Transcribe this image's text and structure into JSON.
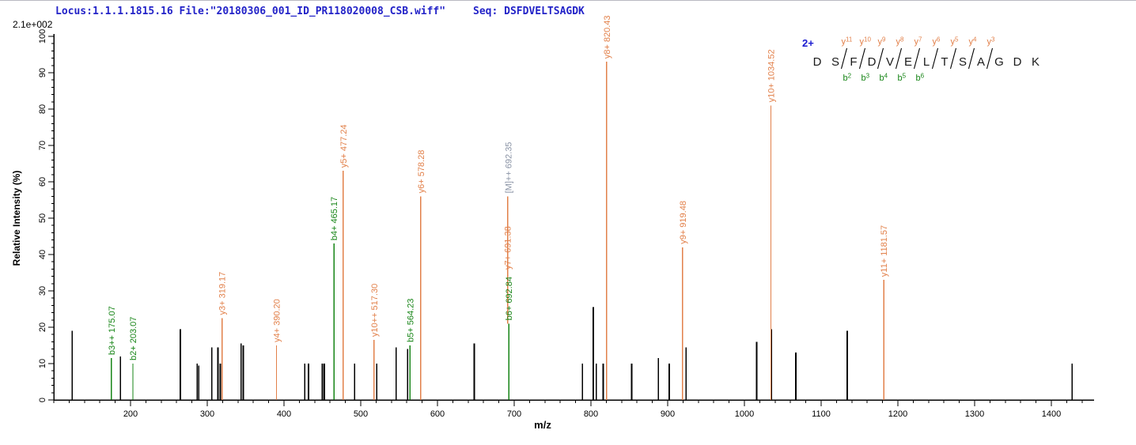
{
  "header": {
    "locus_file": "Locus:1.1.1.1815.16 File:\"20180306_001_ID_PR118020008_CSB.wiff\"",
    "seq": "Seq: DSFDVELTSAGDK",
    "max_intensity": "2.1e+002"
  },
  "axes": {
    "x_label": "m/z",
    "y_label": "Relative Intensity (%)",
    "x_major_ticks": [
      200,
      300,
      400,
      500,
      600,
      700,
      800,
      900,
      1000,
      1100,
      1200,
      1300,
      1400
    ],
    "y_major_ticks": [
      0,
      10,
      20,
      30,
      40,
      50,
      60,
      70,
      80,
      90,
      100
    ],
    "x_min": 100,
    "x_max": 1455,
    "y_min": 0,
    "y_max": 100
  },
  "precursor": {
    "charge": "2+",
    "residues": [
      "D",
      "S",
      "F",
      "D",
      "V",
      "E",
      "L",
      "T",
      "S",
      "A",
      "G",
      "D",
      "K"
    ],
    "cleavages": [
      {
        "after_residue_index": 1,
        "y_label": "y11",
        "b_label": "b2"
      },
      {
        "after_residue_index": 2,
        "y_label": "y10",
        "b_label": "b3"
      },
      {
        "after_residue_index": 3,
        "y_label": "y9",
        "b_label": "b4"
      },
      {
        "after_residue_index": 4,
        "y_label": "y8",
        "b_label": "b5"
      },
      {
        "after_residue_index": 5,
        "y_label": "y7",
        "b_label": "b6"
      },
      {
        "after_residue_index": 6,
        "y_label": "y6",
        "b_label": null
      },
      {
        "after_residue_index": 7,
        "y_label": "y5",
        "b_label": null
      },
      {
        "after_residue_index": 8,
        "y_label": "y4",
        "b_label": null
      },
      {
        "after_residue_index": 9,
        "y_label": "y3",
        "b_label": null
      }
    ]
  },
  "colors": {
    "y_ion": "#e2804a",
    "b_ion": "#178517",
    "precursor_ion": "#8a93a5",
    "unassigned": "#000000",
    "header_text": "#2323c8",
    "charge_label": "#1a1ad0"
  },
  "chart_data": {
    "type": "bar",
    "description": "MS/MS fragment ion spectrum, relative intensity (%) vs m/z",
    "annotated_peaks": [
      {
        "label": "b3++ 175.07",
        "mz": 175.07,
        "intensity": 11.5,
        "ion": "b"
      },
      {
        "label": "b2+ 203.07",
        "mz": 203.07,
        "intensity": 10,
        "ion": "b"
      },
      {
        "label": "y3+ 319.17",
        "mz": 319.17,
        "intensity": 22.5,
        "ion": "y"
      },
      {
        "label": "y4+ 390.20",
        "mz": 390.2,
        "intensity": 15,
        "ion": "y"
      },
      {
        "label": "b4+ 465.17",
        "mz": 465.17,
        "intensity": 43,
        "ion": "b"
      },
      {
        "label": "y5+ 477.24",
        "mz": 477.24,
        "intensity": 63,
        "ion": "y"
      },
      {
        "label": "y10++ 517.30",
        "mz": 517.3,
        "intensity": 16.5,
        "ion": "y"
      },
      {
        "label": "b5+ 564.23",
        "mz": 564.23,
        "intensity": 15,
        "ion": "b"
      },
      {
        "label": "y6+ 578.28",
        "mz": 578.28,
        "intensity": 56,
        "ion": "y"
      },
      {
        "label": "b6+ 692.84",
        "mz": 692.84,
        "intensity": 21,
        "ion": "b"
      },
      {
        "label": "y7+ 691.38",
        "mz": 691.38,
        "intensity": 56,
        "ion": "y",
        "draw_from": 21,
        "label_at": 35
      },
      {
        "label": "[M]++ 692.35",
        "mz": 692.35,
        "intensity": 56,
        "ion": "M",
        "draw_from": 56,
        "label_at": 56
      },
      {
        "label": "y8+ 820.43",
        "mz": 820.43,
        "intensity": 93,
        "ion": "y"
      },
      {
        "label": "y9+ 919.48",
        "mz": 919.48,
        "intensity": 42,
        "ion": "y"
      },
      {
        "label": "y10+ 1034.52",
        "mz": 1034.52,
        "intensity": 81,
        "ion": "y"
      },
      {
        "label": "y11+ 1181.57",
        "mz": 1181.57,
        "intensity": 33,
        "ion": "y"
      }
    ],
    "unassigned_peaks": [
      {
        "mz": 124,
        "intensity": 19
      },
      {
        "mz": 187,
        "intensity": 12
      },
      {
        "mz": 265,
        "intensity": 19.5
      },
      {
        "mz": 287,
        "intensity": 10
      },
      {
        "mz": 289,
        "intensity": 9.5
      },
      {
        "mz": 306,
        "intensity": 14.5
      },
      {
        "mz": 314,
        "intensity": 14.5
      },
      {
        "mz": 317,
        "intensity": 10
      },
      {
        "mz": 344,
        "intensity": 15.5
      },
      {
        "mz": 347,
        "intensity": 15
      },
      {
        "mz": 427,
        "intensity": 10
      },
      {
        "mz": 432,
        "intensity": 10
      },
      {
        "mz": 450,
        "intensity": 10
      },
      {
        "mz": 452.5,
        "intensity": 10
      },
      {
        "mz": 492,
        "intensity": 10
      },
      {
        "mz": 521,
        "intensity": 10
      },
      {
        "mz": 546,
        "intensity": 14.5
      },
      {
        "mz": 561,
        "intensity": 14
      },
      {
        "mz": 648,
        "intensity": 15.5
      },
      {
        "mz": 789,
        "intensity": 10
      },
      {
        "mz": 803,
        "intensity": 25.5
      },
      {
        "mz": 807,
        "intensity": 10
      },
      {
        "mz": 816,
        "intensity": 10
      },
      {
        "mz": 853,
        "intensity": 10
      },
      {
        "mz": 888,
        "intensity": 11.5
      },
      {
        "mz": 902,
        "intensity": 10
      },
      {
        "mz": 924,
        "intensity": 14.5
      },
      {
        "mz": 1016,
        "intensity": 16
      },
      {
        "mz": 1035.3,
        "intensity": 19.5
      },
      {
        "mz": 1067,
        "intensity": 13
      },
      {
        "mz": 1134,
        "intensity": 19
      },
      {
        "mz": 1427,
        "intensity": 10
      }
    ]
  }
}
